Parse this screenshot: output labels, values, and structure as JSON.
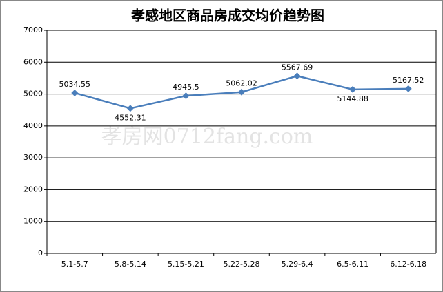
{
  "chart_data": {
    "type": "line",
    "title": "孝感地区商品房成交均价趋势图",
    "watermark": "孝房网0712fang.com",
    "categories": [
      "5.1-5.7",
      "5.8-5.14",
      "5.15-5.21",
      "5.22-5.28",
      "5.29-6.4",
      "6.5-6.11",
      "6.12-6.18"
    ],
    "values": [
      5034.55,
      4552.31,
      4945.5,
      5062.02,
      5567.69,
      5144.88,
      5167.52
    ],
    "color": "#4a7ebb",
    "ylim": [
      0,
      7000
    ],
    "yticks": [
      0,
      1000,
      2000,
      3000,
      4000,
      5000,
      6000,
      7000
    ],
    "grid": true
  }
}
